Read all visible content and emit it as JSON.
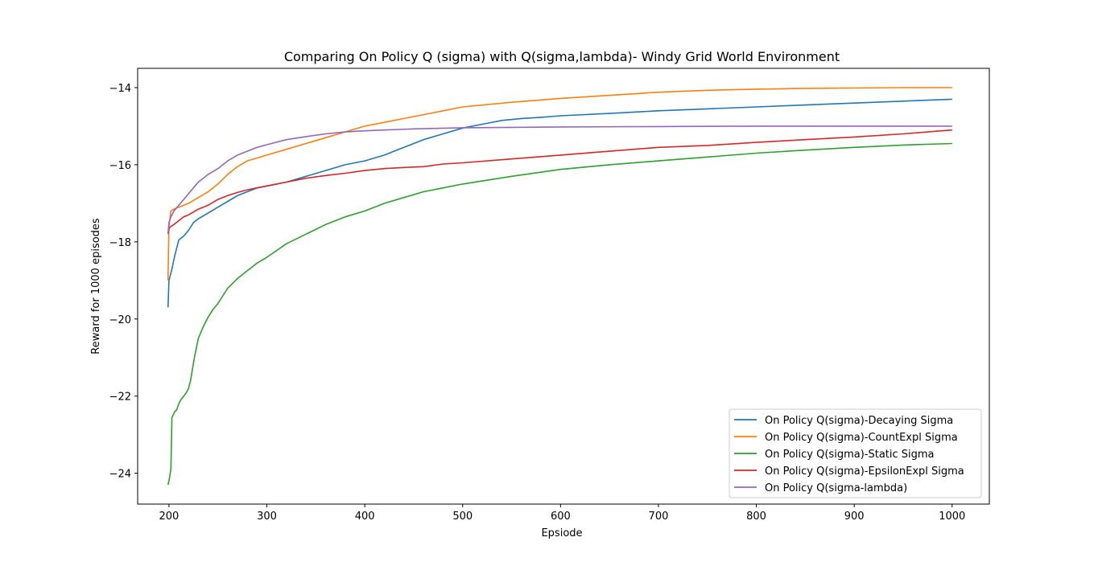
{
  "chart_data": {
    "type": "line",
    "title": "Comparing On Policy  Q (sigma) with Q(sigma,lambda)- Windy Grid World Environment",
    "xlabel": "Epsiode",
    "ylabel": "Reward for 1000 episodes",
    "xlim": [
      168,
      1038
    ],
    "ylim": [
      -24.8,
      -13.5
    ],
    "xticks": [
      200,
      300,
      400,
      500,
      600,
      700,
      800,
      900,
      1000
    ],
    "yticks": [
      -24,
      -22,
      -20,
      -18,
      -16,
      -14
    ],
    "xtick_labels": [
      "200",
      "300",
      "400",
      "500",
      "600",
      "700",
      "800",
      "900",
      "1000"
    ],
    "ytick_labels": [
      "−24",
      "−22",
      "−20",
      "−18",
      "−16",
      "−14"
    ],
    "grid": false,
    "legend_position": "lower-right",
    "series": [
      {
        "name": "On Policy Q(sigma)-Decaying Sigma",
        "color": "#1f77b4",
        "x": [
          199,
          200,
          203,
          206,
          210,
          215,
          220,
          225,
          230,
          240,
          250,
          260,
          270,
          280,
          290,
          300,
          320,
          340,
          360,
          380,
          400,
          420,
          440,
          460,
          480,
          500,
          520,
          540,
          560,
          580,
          600,
          650,
          700,
          750,
          800,
          850,
          900,
          950,
          1000
        ],
        "y": [
          -19.7,
          -19.0,
          -18.7,
          -18.35,
          -17.95,
          -17.85,
          -17.7,
          -17.5,
          -17.4,
          -17.25,
          -17.1,
          -16.95,
          -16.8,
          -16.7,
          -16.6,
          -16.55,
          -16.45,
          -16.3,
          -16.15,
          -16.0,
          -15.9,
          -15.75,
          -15.55,
          -15.35,
          -15.2,
          -15.05,
          -14.95,
          -14.85,
          -14.8,
          -14.77,
          -14.73,
          -14.67,
          -14.6,
          -14.55,
          -14.5,
          -14.45,
          -14.4,
          -14.35,
          -14.3
        ]
      },
      {
        "name": "On Policy Q(sigma)-CountExpl Sigma",
        "color": "#ff7f0e",
        "x": [
          199,
          200,
          202,
          205,
          210,
          220,
          230,
          240,
          250,
          260,
          270,
          280,
          300,
          320,
          340,
          360,
          380,
          400,
          420,
          440,
          460,
          480,
          500,
          550,
          600,
          650,
          700,
          750,
          800,
          850,
          900,
          950,
          1000
        ],
        "y": [
          -19.0,
          -17.6,
          -17.2,
          -17.15,
          -17.1,
          -17.0,
          -16.85,
          -16.7,
          -16.5,
          -16.25,
          -16.05,
          -15.9,
          -15.75,
          -15.6,
          -15.45,
          -15.3,
          -15.15,
          -15.0,
          -14.9,
          -14.8,
          -14.7,
          -14.6,
          -14.5,
          -14.38,
          -14.28,
          -14.2,
          -14.12,
          -14.07,
          -14.04,
          -14.02,
          -14.01,
          -14.0,
          -14.0
        ]
      },
      {
        "name": "On Policy Q(sigma)-Static Sigma",
        "color": "#2ca02c",
        "x": [
          199,
          200,
          202,
          203,
          204,
          206,
          208,
          210,
          212,
          215,
          218,
          220,
          222,
          224,
          226,
          228,
          230,
          235,
          240,
          245,
          250,
          255,
          260,
          270,
          280,
          290,
          300,
          320,
          340,
          360,
          380,
          400,
          420,
          440,
          460,
          480,
          500,
          550,
          600,
          650,
          700,
          750,
          800,
          850,
          900,
          950,
          1000
        ],
        "y": [
          -24.3,
          -24.2,
          -23.9,
          -22.55,
          -22.5,
          -22.4,
          -22.35,
          -22.2,
          -22.1,
          -22.0,
          -21.9,
          -21.8,
          -21.6,
          -21.3,
          -21.0,
          -20.75,
          -20.5,
          -20.2,
          -19.95,
          -19.75,
          -19.6,
          -19.4,
          -19.2,
          -18.95,
          -18.75,
          -18.55,
          -18.4,
          -18.05,
          -17.8,
          -17.55,
          -17.35,
          -17.2,
          -17.0,
          -16.85,
          -16.7,
          -16.6,
          -16.5,
          -16.3,
          -16.12,
          -16.0,
          -15.9,
          -15.8,
          -15.7,
          -15.62,
          -15.55,
          -15.49,
          -15.45
        ]
      },
      {
        "name": "On Policy Q(sigma)-EpsilonExpl Sigma",
        "color": "#d62728",
        "x": [
          199,
          200,
          202,
          205,
          210,
          215,
          220,
          230,
          240,
          250,
          260,
          270,
          280,
          290,
          300,
          320,
          340,
          360,
          380,
          400,
          420,
          440,
          460,
          480,
          500,
          550,
          600,
          650,
          700,
          750,
          800,
          850,
          900,
          950,
          1000
        ],
        "y": [
          -17.8,
          -17.65,
          -17.6,
          -17.55,
          -17.45,
          -17.35,
          -17.3,
          -17.15,
          -17.05,
          -16.9,
          -16.8,
          -16.72,
          -16.65,
          -16.6,
          -16.55,
          -16.45,
          -16.35,
          -16.28,
          -16.22,
          -16.15,
          -16.1,
          -16.07,
          -16.05,
          -15.98,
          -15.95,
          -15.85,
          -15.75,
          -15.65,
          -15.55,
          -15.5,
          -15.42,
          -15.35,
          -15.28,
          -15.2,
          -15.1
        ]
      },
      {
        "name": "On Policy Q(sigma-lambda)",
        "color": "#9467bd",
        "x": [
          199,
          200,
          202,
          205,
          210,
          215,
          220,
          225,
          230,
          240,
          250,
          260,
          270,
          280,
          290,
          300,
          320,
          340,
          360,
          380,
          400,
          420,
          450,
          500,
          550,
          600,
          700,
          800,
          900,
          1000
        ],
        "y": [
          -17.8,
          -17.5,
          -17.35,
          -17.2,
          -17.05,
          -16.9,
          -16.75,
          -16.6,
          -16.45,
          -16.25,
          -16.1,
          -15.9,
          -15.75,
          -15.65,
          -15.55,
          -15.48,
          -15.35,
          -15.27,
          -15.2,
          -15.15,
          -15.12,
          -15.1,
          -15.07,
          -15.04,
          -15.03,
          -15.02,
          -15.01,
          -15.0,
          -15.0,
          -15.0
        ]
      }
    ]
  }
}
